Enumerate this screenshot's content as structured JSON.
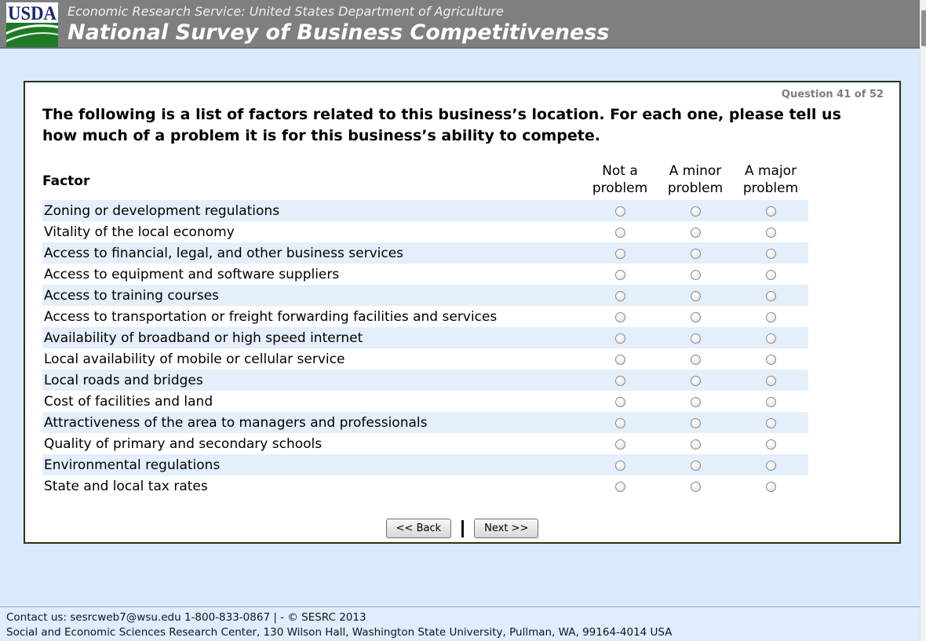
{
  "header": {
    "logo_text": "USDA",
    "agency_line": "Economic Research Service: United States Department of Agriculture",
    "survey_title": "National Survey of Business Competitiveness"
  },
  "survey": {
    "progress": "Question 41 of 52",
    "question": "The following is a list of factors related to this business’s location. For each one, please tell us how much of a problem it is for this business’s ability to compete.",
    "table": {
      "factor_header": "Factor",
      "options": [
        "Not a problem",
        "A minor problem",
        "A major problem"
      ],
      "rows": [
        "Zoning or development regulations",
        "Vitality of the local economy",
        "Access to financial, legal, and other business services",
        "Access to equipment and software suppliers",
        "Access to training courses",
        "Access to transportation or freight forwarding facilities and services",
        "Availability of broadband or high speed internet",
        "Local availability of mobile or cellular service",
        "Local roads and bridges",
        "Cost of facilities and land",
        "Attractiveness of the area to managers and professionals",
        "Quality of primary and secondary schools",
        "Environmental regulations",
        "State and local tax rates"
      ],
      "selected": []
    },
    "buttons": {
      "back": "<< Back",
      "next": "Next >>"
    }
  },
  "footer": {
    "line1": "Contact us: sesrcweb7@wsu.edu 1-800-833-0867 | - © SESRC 2013",
    "line2": "Social and Economic Sciences Research Center, 130 Wilson Hall, Washington State University, Pullman, WA, 99164-4014 USA"
  },
  "colors": {
    "header_gray": "#7f7f7f",
    "page_background": "#dae9fb",
    "row_stripe": "#e4effb",
    "panel_border": "#24380c",
    "usda_blue": "#15286e",
    "usda_green": "#1e7a24"
  }
}
